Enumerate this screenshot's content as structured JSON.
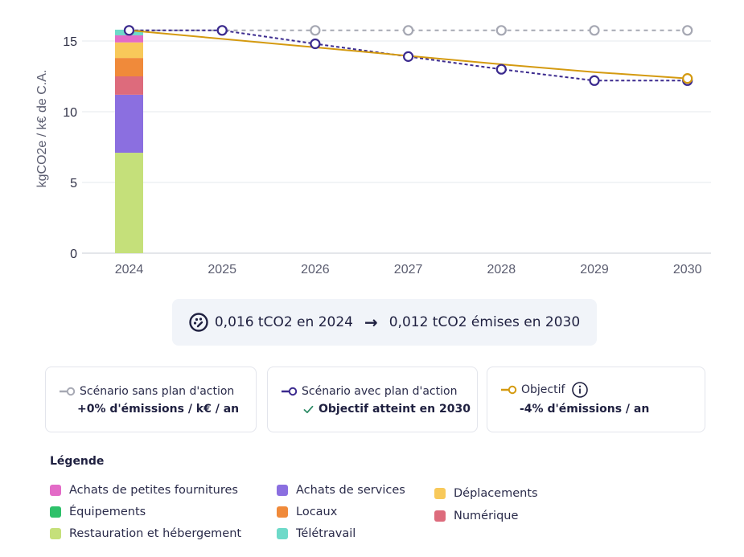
{
  "chart_data": {
    "type": "bar+line",
    "ylabel": "kgCO2e / k€ de C.A.",
    "ylim": [
      0,
      16
    ],
    "y_ticks": [
      "0",
      "5",
      "10",
      "15"
    ],
    "categories": [
      "2024",
      "2025",
      "2026",
      "2027",
      "2028",
      "2029",
      "2030"
    ],
    "stacked_bar_2024": [
      {
        "name": "Restauration et hébergement",
        "value": 7.1,
        "color": "#c5e07a"
      },
      {
        "name": "Achats de services",
        "value": 4.1,
        "color": "#8b6fe0"
      },
      {
        "name": "Numérique",
        "value": 1.3,
        "color": "#dd6b7c"
      },
      {
        "name": "Locaux",
        "value": 1.3,
        "color": "#f08a3a"
      },
      {
        "name": "Déplacements",
        "value": 1.1,
        "color": "#f8c95a"
      },
      {
        "name": "Achats de petites fournitures",
        "value": 0.5,
        "color": "#e36bc7"
      },
      {
        "name": "Télétravail",
        "value": 0.4,
        "color": "#6edac9"
      },
      {
        "name": "Équipements",
        "value": 0.0,
        "color": "#2ec16a"
      }
    ],
    "series": [
      {
        "name": "Scénario sans plan d'action",
        "color": "#a6a8b3",
        "style": "dashed",
        "values": [
          15.75,
          15.75,
          15.75,
          15.75,
          15.75,
          15.75,
          15.75
        ]
      },
      {
        "name": "Scénario avec plan d'action",
        "color": "#3b2a8e",
        "style": "dotted",
        "values": [
          15.75,
          15.75,
          14.8,
          13.9,
          13.0,
          12.2,
          12.2
        ]
      },
      {
        "name": "Objectif",
        "color": "#d49a10",
        "style": "solid",
        "values": [
          15.75,
          15.15,
          14.55,
          13.95,
          13.35,
          12.8,
          12.35
        ]
      }
    ]
  },
  "summary": {
    "start": "0,016 tCO2 en 2024",
    "end": "0,012 tCO2 émises en 2030"
  },
  "cards": {
    "sans": {
      "title": "Scénario sans plan d'action",
      "value": "+0% d'émissions / k€ / an"
    },
    "avec": {
      "title": "Scénario avec plan d'action",
      "value": "Objectif atteint en 2030"
    },
    "objectif": {
      "title": "Objectif",
      "value": "-4% d'émissions / an"
    }
  },
  "legend": {
    "title": "Légende",
    "items": [
      {
        "label": "Achats de petites fournitures",
        "color": "#e36bc7"
      },
      {
        "label": "Équipements",
        "color": "#2ec16a"
      },
      {
        "label": "Restauration et hébergement",
        "color": "#c5e07a"
      },
      {
        "label": "Achats de services",
        "color": "#8b6fe0"
      },
      {
        "label": "Locaux",
        "color": "#f08a3a"
      },
      {
        "label": "Télétravail",
        "color": "#6edac9"
      },
      {
        "label": "Déplacements",
        "color": "#f8c95a"
      },
      {
        "label": "Numérique",
        "color": "#dd6b7c"
      }
    ]
  }
}
